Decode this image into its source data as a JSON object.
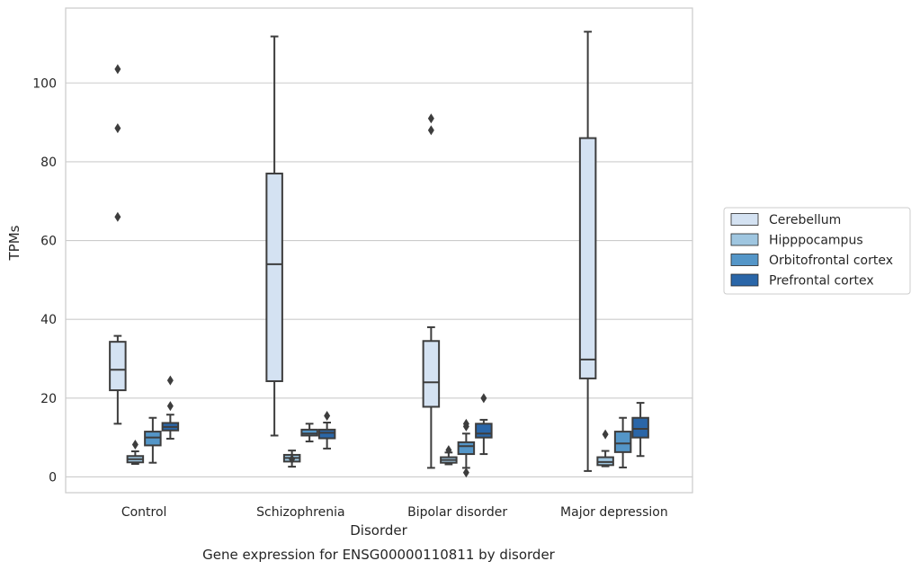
{
  "chart_data": {
    "type": "boxplot",
    "title": "",
    "caption": "Gene expression for ENSG00000110811 by disorder",
    "xlabel": "Disorder",
    "ylabel": "TPMs",
    "ylim": [
      -4,
      119
    ],
    "yticks": [
      0,
      20,
      40,
      60,
      80,
      100
    ],
    "grid": "horizontal",
    "legend_position": "right",
    "categories": [
      "Control",
      "Schizophrenia",
      "Bipolar disorder",
      "Major depression"
    ],
    "series": [
      {
        "name": "Cerebellum",
        "color": "#d4e2f2",
        "boxes": [
          {
            "whislo": 13.5,
            "q1": 22,
            "med": 27.2,
            "q3": 34.3,
            "whishi": 35.8,
            "fliers": [
              66,
              88.5,
              103.5
            ]
          },
          {
            "whislo": 10.5,
            "q1": 24.3,
            "med": 54,
            "q3": 77,
            "whishi": 111.8,
            "fliers": []
          },
          {
            "whislo": 2.3,
            "q1": 17.8,
            "med": 24,
            "q3": 34.5,
            "whishi": 38,
            "fliers": [
              88,
              91
            ]
          },
          {
            "whislo": 1.5,
            "q1": 25,
            "med": 29.8,
            "q3": 86,
            "whishi": 113,
            "fliers": []
          }
        ]
      },
      {
        "name": "Hipppocampus",
        "color": "#9fc6e0",
        "boxes": [
          {
            "whislo": 3.3,
            "q1": 3.7,
            "med": 4.5,
            "q3": 5.3,
            "whishi": 6.5,
            "fliers": [
              8.2
            ]
          },
          {
            "whislo": 2.6,
            "q1": 3.9,
            "med": 4.8,
            "q3": 5.6,
            "whishi": 6.7,
            "fliers": [
              4.5
            ]
          },
          {
            "whislo": 3.2,
            "q1": 3.6,
            "med": 4.3,
            "q3": 5,
            "whishi": 6.2,
            "fliers": [
              6.8
            ]
          },
          {
            "whislo": 2.7,
            "q1": 3,
            "med": 3.8,
            "q3": 5,
            "whishi": 6.6,
            "fliers": [
              10.8
            ]
          }
        ]
      },
      {
        "name": "Orbitofrontal cortex",
        "color": "#5496c8",
        "boxes": [
          {
            "whislo": 3.6,
            "q1": 8,
            "med": 10,
            "q3": 11.5,
            "whishi": 15,
            "fliers": []
          },
          {
            "whislo": 9,
            "q1": 10.5,
            "med": 11,
            "q3": 12,
            "whishi": 13.5,
            "fliers": []
          },
          {
            "whislo": 2.3,
            "q1": 5.8,
            "med": 7.8,
            "q3": 8.8,
            "whishi": 11,
            "fliers": [
              1.1,
              12.8,
              13.5
            ]
          },
          {
            "whislo": 2.4,
            "q1": 6.3,
            "med": 8.5,
            "q3": 11.5,
            "whishi": 15,
            "fliers": []
          }
        ]
      },
      {
        "name": "Prefrontal cortex",
        "color": "#2a66a8",
        "boxes": [
          {
            "whislo": 9.7,
            "q1": 11.8,
            "med": 12.7,
            "q3": 13.7,
            "whishi": 15.8,
            "fliers": [
              18,
              24.5
            ]
          },
          {
            "whislo": 7.2,
            "q1": 9.8,
            "med": 11.2,
            "q3": 12,
            "whishi": 13.8,
            "fliers": [
              15.5
            ]
          },
          {
            "whislo": 5.8,
            "q1": 10,
            "med": 11,
            "q3": 13.5,
            "whishi": 14.5,
            "fliers": [
              20
            ]
          },
          {
            "whislo": 5.3,
            "q1": 10,
            "med": 12.2,
            "q3": 15,
            "whishi": 18.8,
            "fliers": []
          }
        ]
      }
    ]
  }
}
